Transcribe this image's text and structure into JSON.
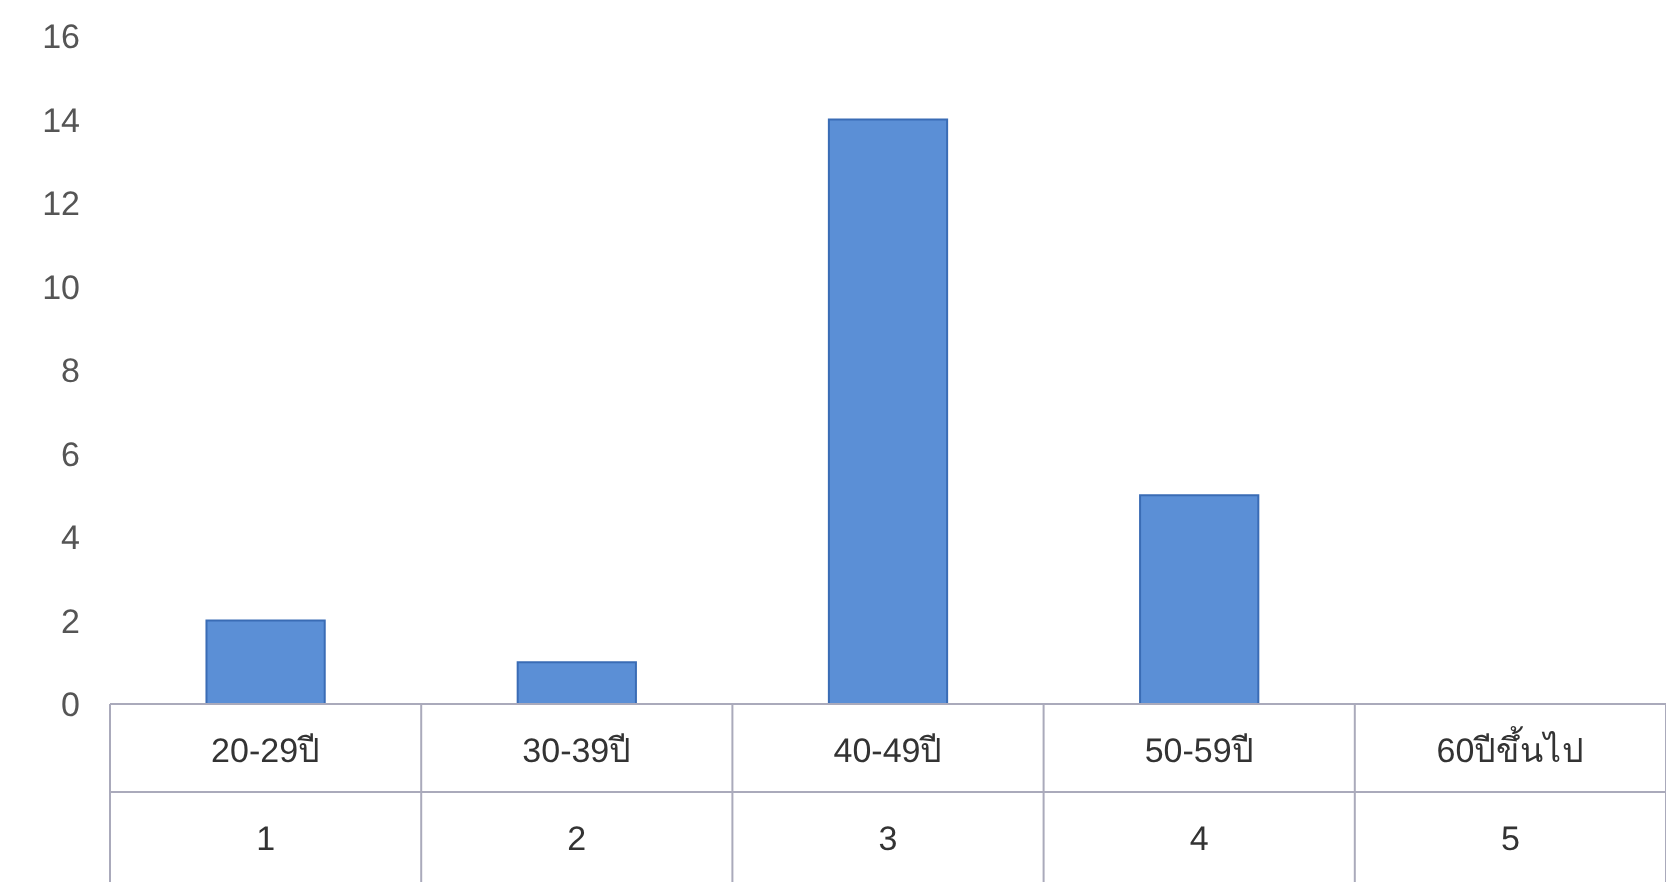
{
  "chart_data": {
    "type": "bar",
    "categories": [
      "20-29ปี\n1",
      "30-39ปี\n2",
      "40-49ปี\n3",
      "50-59ปี\n4",
      "60ปีขึ้นไป\n5"
    ],
    "values": [
      2,
      1,
      14,
      5,
      0
    ],
    "color": "#5b8fd6",
    "ylim": [
      0,
      16
    ],
    "yticks": [
      0,
      2,
      4,
      6,
      8,
      10,
      12,
      14,
      16
    ]
  }
}
